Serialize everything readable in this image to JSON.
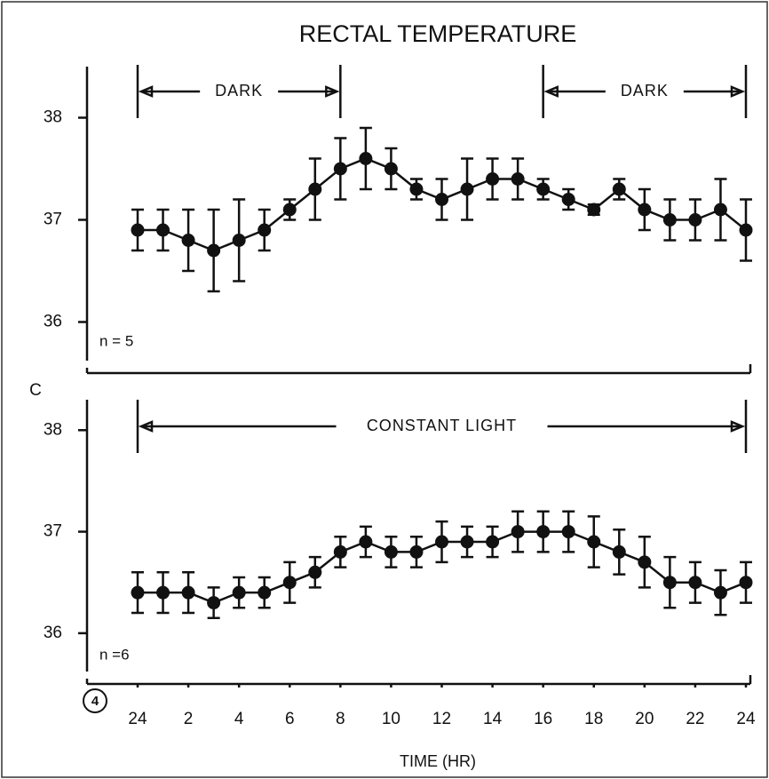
{
  "chart_data": [
    {
      "type": "line",
      "title": "RECTAL TEMPERATURE",
      "ylabel": "C",
      "x": [
        0,
        1,
        2,
        3,
        4,
        5,
        6,
        7,
        8,
        9,
        10,
        11,
        12,
        13,
        14,
        15,
        16,
        17,
        18,
        19,
        20,
        21,
        22,
        23,
        24
      ],
      "xlim": [
        0,
        24
      ],
      "ylim": [
        35.5,
        38.5
      ],
      "yticks": [
        36,
        37,
        38
      ],
      "series": [
        {
          "color": "#111111",
          "values": [
            36.9,
            36.9,
            36.8,
            36.7,
            36.8,
            36.9,
            37.1,
            37.3,
            37.5,
            37.6,
            37.5,
            37.3,
            37.2,
            37.3,
            37.4,
            37.4,
            37.3,
            37.2,
            37.1,
            37.3,
            37.1,
            37.0,
            37.0,
            37.1,
            36.9
          ],
          "errors": [
            0.2,
            0.2,
            0.3,
            0.4,
            0.4,
            0.2,
            0.1,
            0.3,
            0.3,
            0.3,
            0.2,
            0.1,
            0.2,
            0.3,
            0.2,
            0.2,
            0.1,
            0.1,
            0.05,
            0.1,
            0.2,
            0.2,
            0.2,
            0.3,
            0.3
          ]
        }
      ],
      "annotations": [
        {
          "text": "DARK",
          "start": 0,
          "end": 8
        },
        {
          "text": "DARK",
          "start": 16,
          "end": 24
        }
      ],
      "note": "n = 5"
    },
    {
      "type": "line",
      "x": [
        0,
        1,
        2,
        3,
        4,
        5,
        6,
        7,
        8,
        9,
        10,
        11,
        12,
        13,
        14,
        15,
        16,
        17,
        18,
        19,
        20,
        21,
        22,
        23,
        24
      ],
      "xlim": [
        0,
        24
      ],
      "xticks": [
        {
          "value": 0,
          "label": "24"
        },
        2,
        4,
        6,
        8,
        10,
        12,
        14,
        16,
        18,
        20,
        22,
        24
      ],
      "xlabel": "TIME (HR)",
      "ylim": [
        35.5,
        38.3
      ],
      "yticks": [
        36,
        37,
        38
      ],
      "series": [
        {
          "color": "#111111",
          "values": [
            36.4,
            36.4,
            36.4,
            36.3,
            36.4,
            36.4,
            36.5,
            36.6,
            36.8,
            36.9,
            36.8,
            36.8,
            36.9,
            36.9,
            36.9,
            37.0,
            37.0,
            37.0,
            36.9,
            36.8,
            36.7,
            36.5,
            36.5,
            36.4,
            36.5
          ],
          "errors": [
            0.2,
            0.2,
            0.2,
            0.15,
            0.15,
            0.15,
            0.2,
            0.15,
            0.15,
            0.15,
            0.15,
            0.15,
            0.2,
            0.15,
            0.15,
            0.2,
            0.2,
            0.2,
            0.25,
            0.22,
            0.25,
            0.25,
            0.2,
            0.22,
            0.2
          ]
        }
      ],
      "annotations": [
        {
          "text": "CONSTANT LIGHT",
          "start": 0,
          "end": 24
        }
      ],
      "note": "n =6",
      "figure": "4"
    }
  ]
}
